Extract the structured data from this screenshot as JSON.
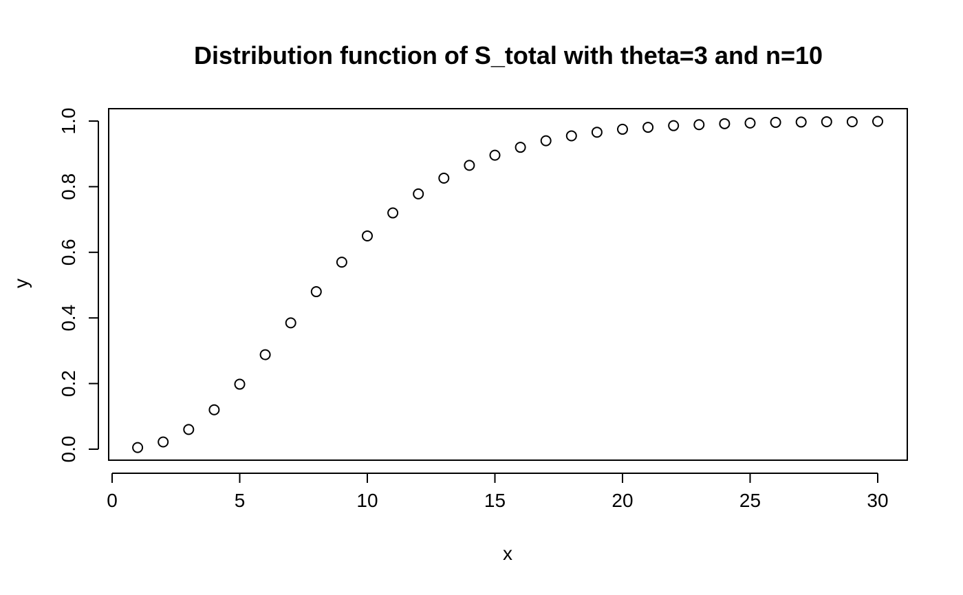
{
  "chart_data": {
    "type": "scatter",
    "title": "Distribution function of S_total with theta=3 and n=10",
    "xlabel": "x",
    "ylabel": "y",
    "xlim": [
      0,
      30
    ],
    "ylim": [
      0,
      1
    ],
    "x_ticks": [
      0,
      5,
      10,
      15,
      20,
      25,
      30
    ],
    "y_ticks": [
      0.0,
      0.2,
      0.4,
      0.6,
      0.8,
      1.0
    ],
    "x_tick_labels": [
      "0",
      "5",
      "10",
      "15",
      "20",
      "25",
      "30"
    ],
    "y_tick_labels": [
      "0.0",
      "0.2",
      "0.4",
      "0.6",
      "0.8",
      "1.0"
    ],
    "grid": false,
    "marker": "open-circle",
    "colors": {
      "marker": "#000000",
      "axis": "#000000",
      "background": "#ffffff"
    },
    "series": [
      {
        "x": [
          1,
          2,
          3,
          4,
          5,
          6,
          7,
          8,
          9,
          10,
          11,
          12,
          13,
          14,
          15,
          16,
          17,
          18,
          19,
          20,
          21,
          22,
          23,
          24,
          25,
          26,
          27,
          28,
          29,
          30
        ],
        "y": [
          0.005,
          0.022,
          0.06,
          0.12,
          0.198,
          0.288,
          0.385,
          0.48,
          0.57,
          0.65,
          0.72,
          0.778,
          0.826,
          0.865,
          0.896,
          0.92,
          0.94,
          0.955,
          0.966,
          0.975,
          0.981,
          0.986,
          0.989,
          0.992,
          0.994,
          0.996,
          0.997,
          0.998,
          0.998,
          0.999
        ]
      }
    ]
  }
}
